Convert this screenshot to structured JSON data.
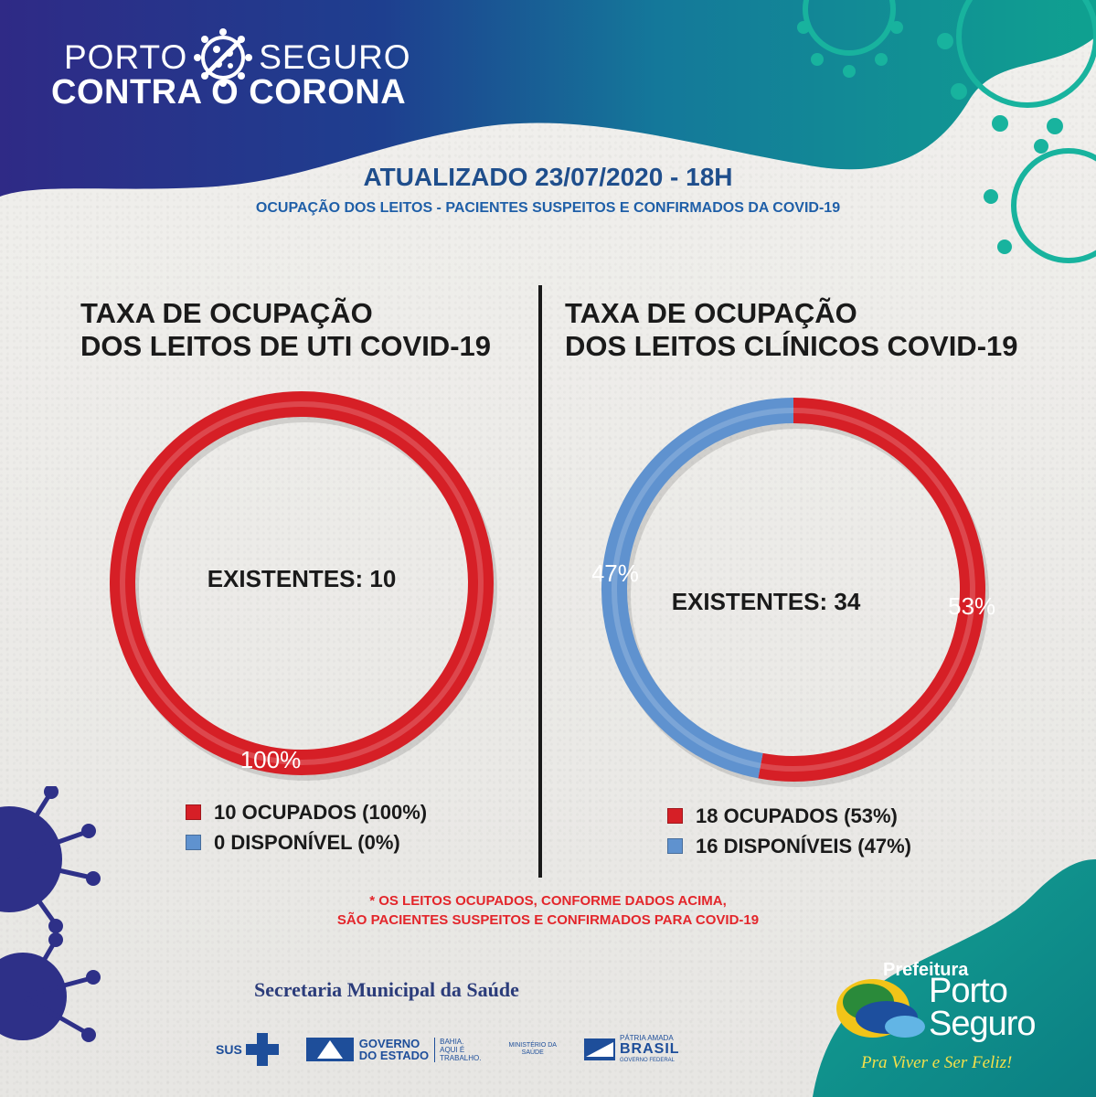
{
  "header": {
    "brand_top_left": "PORTO",
    "brand_top_right": "SEGURO",
    "brand_bottom": "CONTRA O CORONA"
  },
  "update": {
    "title": "ATUALIZADO 23/07/2020 - 18H",
    "subtitle": "OCUPAÇÃO DOS LEITOS - PACIENTES SUSPEITOS E CONFIRMADOS DA COVID-19"
  },
  "colors": {
    "occupied": "#d61f26",
    "available": "#5f92cf",
    "header_dark": "#2c2c84",
    "header_teal": "#0f9b8e"
  },
  "chart_data": [
    {
      "type": "pie",
      "variant": "donut",
      "title_line1": "TAXA DE OCUPAÇÃO",
      "title_line2": "DOS LEITOS DE UTI COVID-19",
      "center_label": "EXISTENTES: 10",
      "slices": [
        {
          "label": "10 OCUPADOS (100%)",
          "value": 10,
          "percent_label": "100%",
          "color": "#d61f26"
        },
        {
          "label": "0 DISPONÍVEL (0%)",
          "value": 0,
          "percent_label": "",
          "color": "#5f92cf"
        }
      ]
    },
    {
      "type": "pie",
      "variant": "donut",
      "title_line1": "TAXA DE OCUPAÇÃO",
      "title_line2": "DOS LEITOS CLÍNICOS COVID-19",
      "center_label": "EXISTENTES: 34",
      "slices": [
        {
          "label": "18 OCUPADOS (53%)",
          "value": 18,
          "percent_label": "53%",
          "color": "#d61f26"
        },
        {
          "label": "16 DISPONÍVEIS (47%)",
          "value": 16,
          "percent_label": "47%",
          "color": "#5f92cf"
        }
      ]
    }
  ],
  "note": {
    "line1": "* OS LEITOS OCUPADOS, CONFORME DADOS ACIMA,",
    "line2": "SÃO PACIENTES SUSPEITOS E CONFIRMADOS PARA COVID-19"
  },
  "footer": {
    "secretaria": "Secretaria Municipal da Saúde",
    "sus": "SUS",
    "gov_line1": "GOVERNO",
    "gov_line2": "DO ESTADO",
    "gov_small1": "BAHIA.",
    "gov_small2": "AQUI É",
    "gov_small3": "TRABALHO.",
    "ministerio_line1": "MINISTÉRIO DA",
    "ministerio_line2": "SAÚDE",
    "brasil_top": "PÁTRIA AMADA",
    "brasil_main": "BRASIL",
    "brasil_bottom": "GOVERNO FEDERAL",
    "prefeitura": "Prefeitura",
    "porto": "Porto",
    "seguro": "Seguro",
    "slogan": "Pra Viver e Ser Feliz!"
  }
}
